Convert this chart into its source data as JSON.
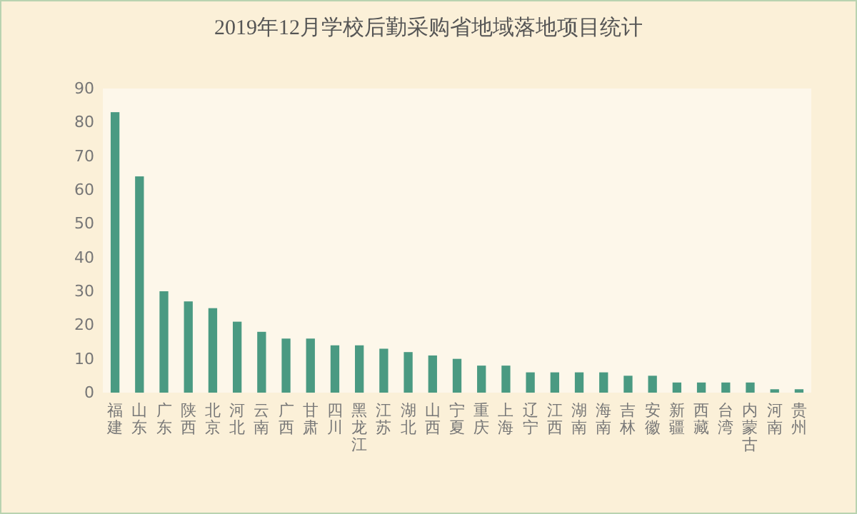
{
  "chart_data": {
    "type": "bar",
    "title": "2019年12月学校后勤采购省地域落地项目统计",
    "categories": [
      "福建",
      "山东",
      "广东",
      "陕西",
      "北京",
      "河北",
      "云南",
      "广西",
      "甘肃",
      "四川",
      "黑龙江",
      "江苏",
      "湖北",
      "山西",
      "宁夏",
      "重庆",
      "上海",
      "辽宁",
      "江西",
      "湖南",
      "海南",
      "吉林",
      "安徽",
      "新疆",
      "西藏",
      "台湾",
      "内蒙古",
      "河南",
      "贵州"
    ],
    "values": [
      83,
      64,
      30,
      27,
      25,
      21,
      18,
      16,
      16,
      14,
      14,
      13,
      12,
      11,
      10,
      8,
      8,
      6,
      6,
      6,
      6,
      5,
      5,
      3,
      3,
      3,
      3,
      1,
      1
    ],
    "color": "#4a9a82",
    "ylim": [
      0,
      90
    ],
    "yticks": [
      0,
      10,
      20,
      30,
      40,
      50,
      60,
      70,
      80,
      90
    ],
    "grid": false
  }
}
